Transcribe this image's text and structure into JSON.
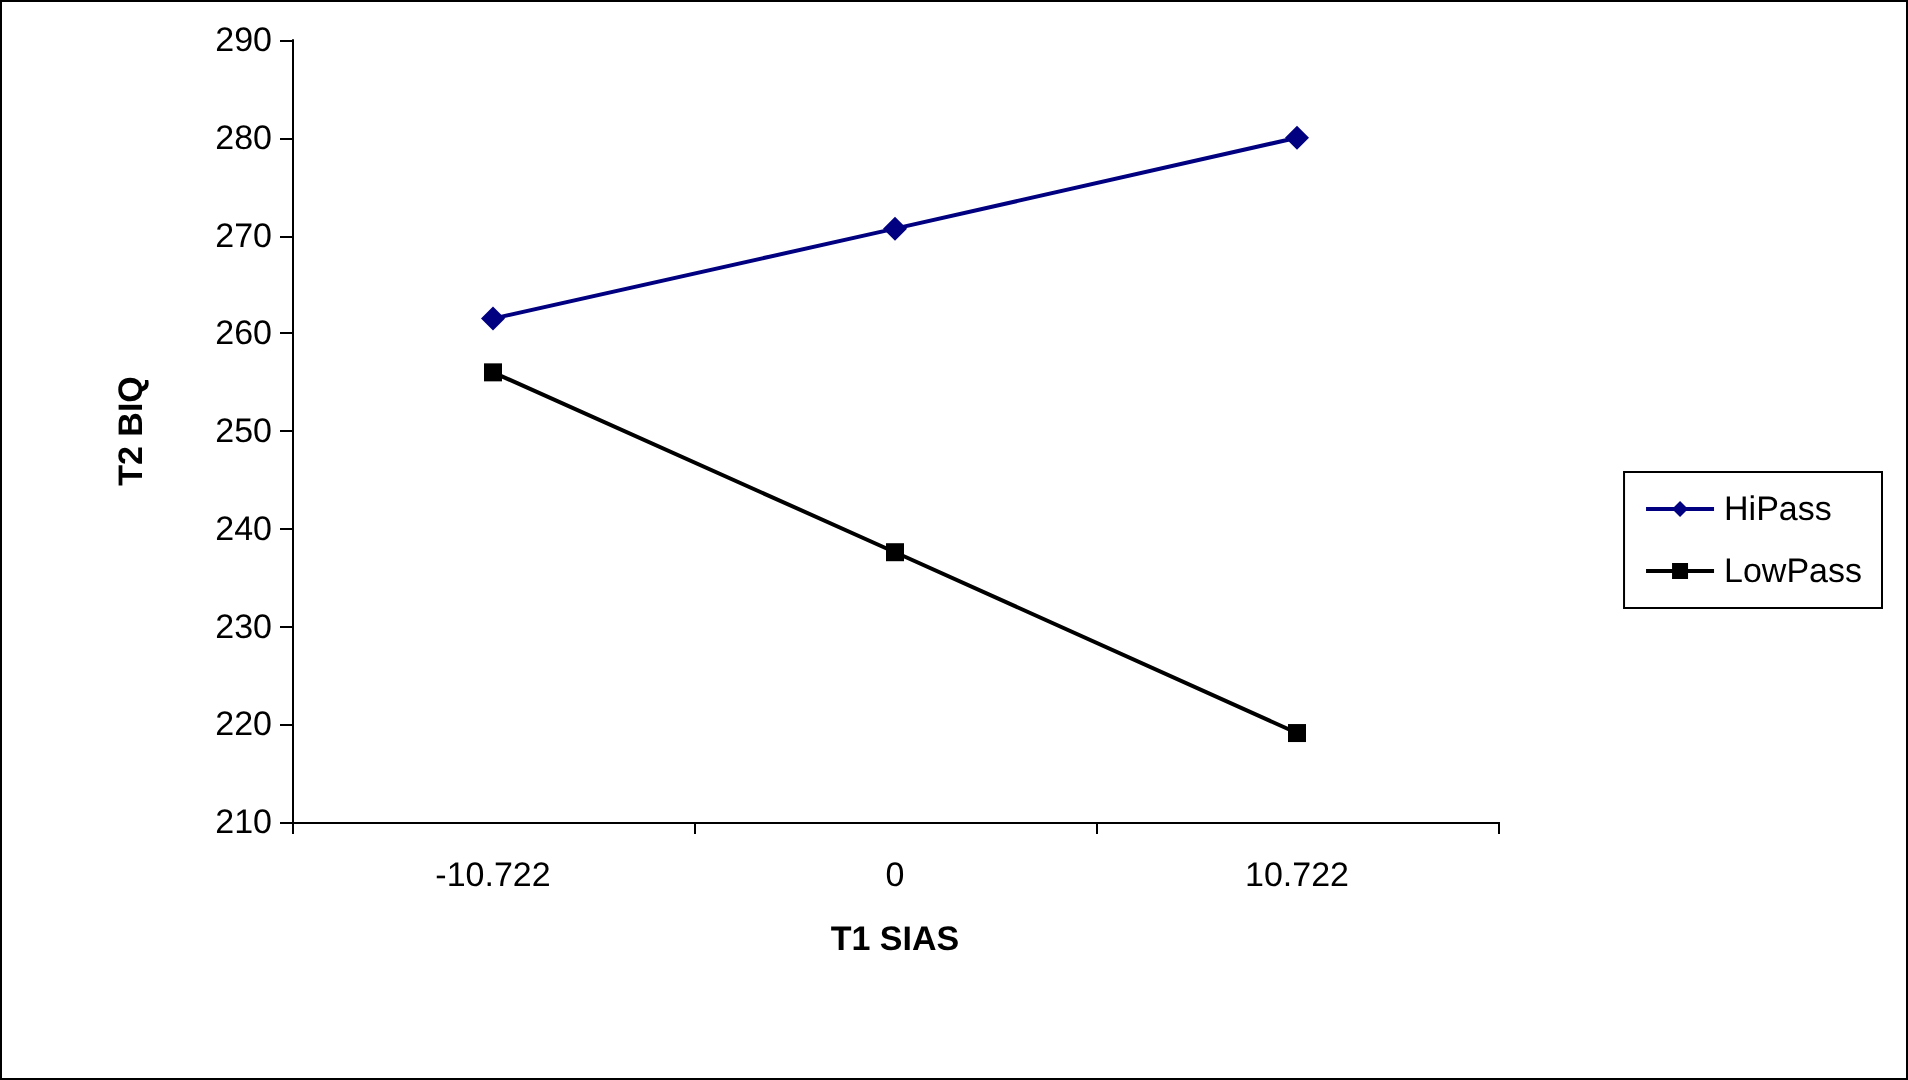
{
  "chart_data": {
    "type": "line",
    "xlabel": "T1 SIAS",
    "ylabel": "T2 BIQ",
    "categories": [
      "-10.722",
      "0",
      "10.722"
    ],
    "series": [
      {
        "name": "HiPass",
        "color": "#000080",
        "marker": "diamond",
        "values": [
          261.5,
          270.7,
          280
        ]
      },
      {
        "name": "LowPass",
        "color": "#000000",
        "marker": "square",
        "values": [
          256,
          237.6,
          219.1
        ]
      }
    ],
    "ylim": [
      210,
      290
    ],
    "yticks": [
      210,
      220,
      230,
      240,
      250,
      260,
      270,
      280,
      290
    ],
    "grid": false,
    "legend": "right",
    "line_style": "solid"
  }
}
